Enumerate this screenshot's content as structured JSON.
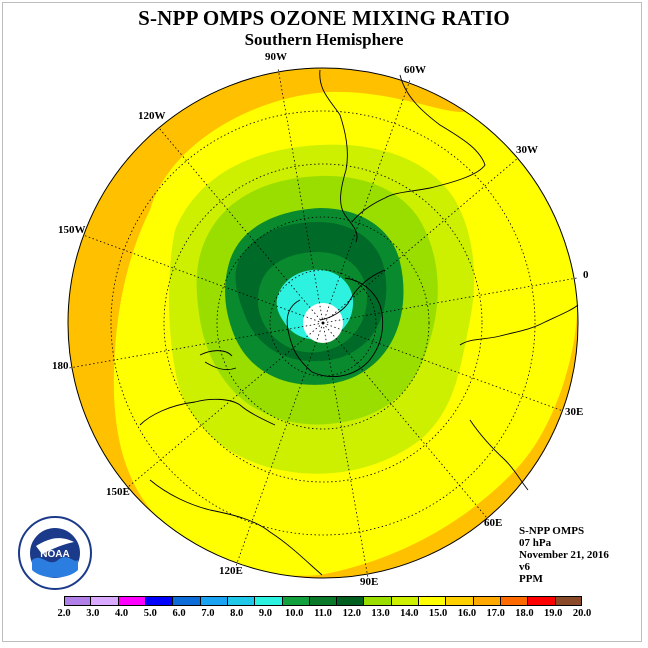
{
  "title": "S-NPP OMPS OZONE MIXING RATIO",
  "subtitle": "Southern Hemisphere",
  "longitude_labels": {
    "w90": "90W",
    "w60": "60W",
    "w30": "30W",
    "e0": "0",
    "w120": "120W",
    "w150": "150W",
    "w180": "180",
    "e30": "30E",
    "e60": "60E",
    "e90": "90E",
    "e120": "120E",
    "e150": "150E"
  },
  "info": {
    "instrument": "S-NPP OMPS",
    "level": "07 hPa",
    "date": "November 21, 2016",
    "version": "v6",
    "units": "PPM"
  },
  "logo_text": "NOAA",
  "colorbar": {
    "ticks": [
      "2.0",
      "3.0",
      "4.0",
      "5.0",
      "6.0",
      "7.0",
      "8.0",
      "9.0",
      "10.0",
      "11.0",
      "12.0",
      "13.0",
      "14.0",
      "15.0",
      "16.0",
      "17.0",
      "18.0",
      "19.0",
      "20.0"
    ],
    "colors": [
      "#b07fe8",
      "#d9aaff",
      "#ff00ff",
      "#0000ff",
      "#0d6dd8",
      "#1aa3f2",
      "#1fc7e8",
      "#2ef2e0",
      "#12a03c",
      "#0a7a2a",
      "#005e1e",
      "#9ade00",
      "#ccf000",
      "#ffff00",
      "#ffd000",
      "#ffa800",
      "#ff6a00",
      "#ff0000",
      "#8a4a2a"
    ]
  },
  "map_colors": {
    "ring_orange": "#ffc000",
    "yellow": "#ffff00",
    "light_green": "#ccf000",
    "green": "#9ade00",
    "mid_green": "#0a8a2e",
    "dark_green": "#006a28",
    "cyan": "#2ef2e0"
  }
}
